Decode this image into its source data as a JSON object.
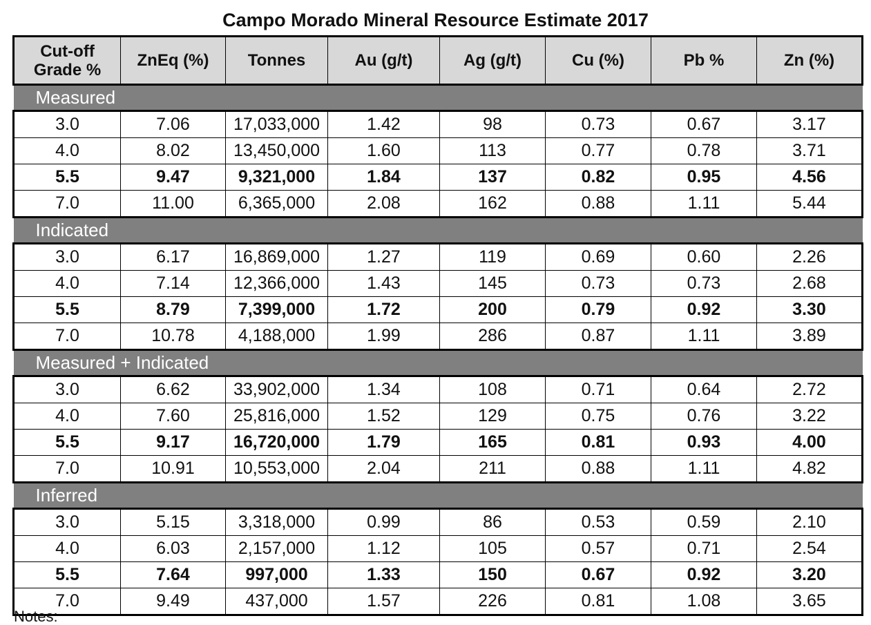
{
  "title": "Campo Morado Mineral Resource Estimate 2017",
  "columns": [
    "Cut-off Grade %",
    "ZnEq (%)",
    "Tonnes",
    "Au (g/t)",
    "Ag (g/t)",
    "Cu (%)",
    "Pb %",
    "Zn (%)"
  ],
  "sections": [
    {
      "label": "Measured",
      "rows": [
        {
          "bold": false,
          "cells": [
            "3.0",
            "7.06",
            "17,033,000",
            "1.42",
            "98",
            "0.73",
            "0.67",
            "3.17"
          ]
        },
        {
          "bold": false,
          "cells": [
            "4.0",
            "8.02",
            "13,450,000",
            "1.60",
            "113",
            "0.77",
            "0.78",
            "3.71"
          ]
        },
        {
          "bold": true,
          "cells": [
            "5.5",
            "9.47",
            "9,321,000",
            "1.84",
            "137",
            "0.82",
            "0.95",
            "4.56"
          ]
        },
        {
          "bold": false,
          "cells": [
            "7.0",
            "11.00",
            "6,365,000",
            "2.08",
            "162",
            "0.88",
            "1.11",
            "5.44"
          ]
        }
      ]
    },
    {
      "label": "Indicated",
      "rows": [
        {
          "bold": false,
          "cells": [
            "3.0",
            "6.17",
            "16,869,000",
            "1.27",
            "119",
            "0.69",
            "0.60",
            "2.26"
          ]
        },
        {
          "bold": false,
          "cells": [
            "4.0",
            "7.14",
            "12,366,000",
            "1.43",
            "145",
            "0.73",
            "0.73",
            "2.68"
          ]
        },
        {
          "bold": true,
          "cells": [
            "5.5",
            "8.79",
            "7,399,000",
            "1.72",
            "200",
            "0.79",
            "0.92",
            "3.30"
          ]
        },
        {
          "bold": false,
          "cells": [
            "7.0",
            "10.78",
            "4,188,000",
            "1.99",
            "286",
            "0.87",
            "1.11",
            "3.89"
          ]
        }
      ]
    },
    {
      "label": "Measured + Indicated",
      "rows": [
        {
          "bold": false,
          "cells": [
            "3.0",
            "6.62",
            "33,902,000",
            "1.34",
            "108",
            "0.71",
            "0.64",
            "2.72"
          ]
        },
        {
          "bold": false,
          "cells": [
            "4.0",
            "7.60",
            "25,816,000",
            "1.52",
            "129",
            "0.75",
            "0.76",
            "3.22"
          ]
        },
        {
          "bold": true,
          "cells": [
            "5.5",
            "9.17",
            "16,720,000",
            "1.79",
            "165",
            "0.81",
            "0.93",
            "4.00"
          ]
        },
        {
          "bold": false,
          "cells": [
            "7.0",
            "10.91",
            "10,553,000",
            "2.04",
            "211",
            "0.88",
            "1.11",
            "4.82"
          ]
        }
      ]
    },
    {
      "label": "Inferred",
      "rows": [
        {
          "bold": false,
          "cells": [
            "3.0",
            "5.15",
            "3,318,000",
            "0.99",
            "86",
            "0.53",
            "0.59",
            "2.10"
          ]
        },
        {
          "bold": false,
          "cells": [
            "4.0",
            "6.03",
            "2,157,000",
            "1.12",
            "105",
            "0.57",
            "0.71",
            "2.54"
          ]
        },
        {
          "bold": true,
          "cells": [
            "5.5",
            "7.64",
            "997,000",
            "1.33",
            "150",
            "0.67",
            "0.92",
            "3.20"
          ]
        },
        {
          "bold": false,
          "cells": [
            "7.0",
            "9.49",
            "437,000",
            "1.57",
            "226",
            "0.81",
            "1.08",
            "3.65"
          ]
        }
      ]
    }
  ],
  "note_label": "Notes:",
  "colors": {
    "header_background": "#d8d8d8",
    "section_background": "#808080",
    "section_text": "#ffffff",
    "border": "#000000"
  }
}
